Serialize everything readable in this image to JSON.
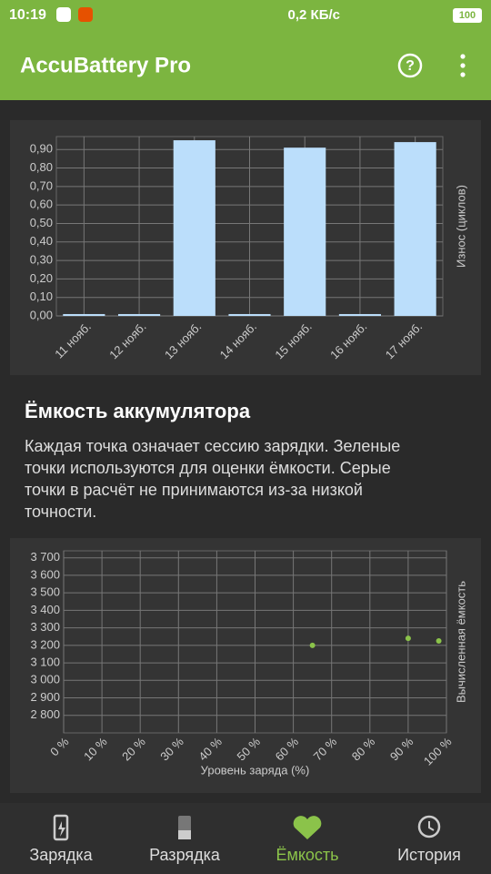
{
  "status_bar": {
    "time": "10:19",
    "speed": "0,2 КБ/с",
    "battery": "100"
  },
  "app_bar": {
    "title": "AccuBattery Pro"
  },
  "chart_data": [
    {
      "type": "bar",
      "y_label": "Износ (циклов)",
      "categories": [
        "11 нояб.",
        "12 нояб.",
        "13 нояб.",
        "14 нояб.",
        "15 нояб.",
        "16 нояб.",
        "17 нояб."
      ],
      "values": [
        0.01,
        0.01,
        0.95,
        0.01,
        0.91,
        0.01,
        0.94
      ],
      "color": "#bbdefb",
      "ylim": [
        0,
        0.97
      ],
      "yticks": [
        {
          "value": 0,
          "label": "0,00"
        },
        {
          "value": 0.1,
          "label": "0,10"
        },
        {
          "value": 0.2,
          "label": "0,20"
        },
        {
          "value": 0.3,
          "label": "0,30"
        },
        {
          "value": 0.4,
          "label": "0,40"
        },
        {
          "value": 0.5,
          "label": "0,50"
        },
        {
          "value": 0.6,
          "label": "0,60"
        },
        {
          "value": 0.7,
          "label": "0,70"
        },
        {
          "value": 0.8,
          "label": "0,80"
        },
        {
          "value": 0.9,
          "label": "0,90"
        }
      ],
      "grid": true
    },
    {
      "type": "scatter",
      "x_label": "Уровень заряда (%)",
      "y_label": "Вычисленная ёмкость",
      "x": [
        65,
        90,
        98
      ],
      "values": [
        3200,
        3240,
        3225
      ],
      "color": "#8bc34a",
      "xlim": [
        0,
        100
      ],
      "xticks": [
        {
          "value": 0,
          "label": "0 %"
        },
        {
          "value": 10,
          "label": "10 %"
        },
        {
          "value": 20,
          "label": "20 %"
        },
        {
          "value": 30,
          "label": "30 %"
        },
        {
          "value": 40,
          "label": "40 %"
        },
        {
          "value": 50,
          "label": "50 %"
        },
        {
          "value": 60,
          "label": "60 %"
        },
        {
          "value": 70,
          "label": "70 %"
        },
        {
          "value": 80,
          "label": "80 %"
        },
        {
          "value": 90,
          "label": "90 %"
        },
        {
          "value": 100,
          "label": "100 %"
        }
      ],
      "ylim": [
        2700,
        3740
      ],
      "yticks": [
        {
          "value": 2800,
          "label": "2 800"
        },
        {
          "value": 2900,
          "label": "2 900"
        },
        {
          "value": 3000,
          "label": "3 000"
        },
        {
          "value": 3100,
          "label": "3 100"
        },
        {
          "value": 3200,
          "label": "3 200"
        },
        {
          "value": 3300,
          "label": "3 300"
        },
        {
          "value": 3400,
          "label": "3 400"
        },
        {
          "value": 3500,
          "label": "3 500"
        },
        {
          "value": 3600,
          "label": "3 600"
        },
        {
          "value": 3700,
          "label": "3 700"
        }
      ],
      "grid": true
    }
  ],
  "section": {
    "title": "Ёмкость аккумулятора",
    "text_lines": [
      "Каждая точка означает сессию зарядки. Зеленые",
      "точки используются для оценки ёмкости. Серые",
      "точки в расчёт не принимаются из-за низкой",
      "точности."
    ]
  },
  "nav": {
    "items": [
      "Зарядка",
      "Разрядка",
      "Ёмкость",
      "История"
    ]
  }
}
